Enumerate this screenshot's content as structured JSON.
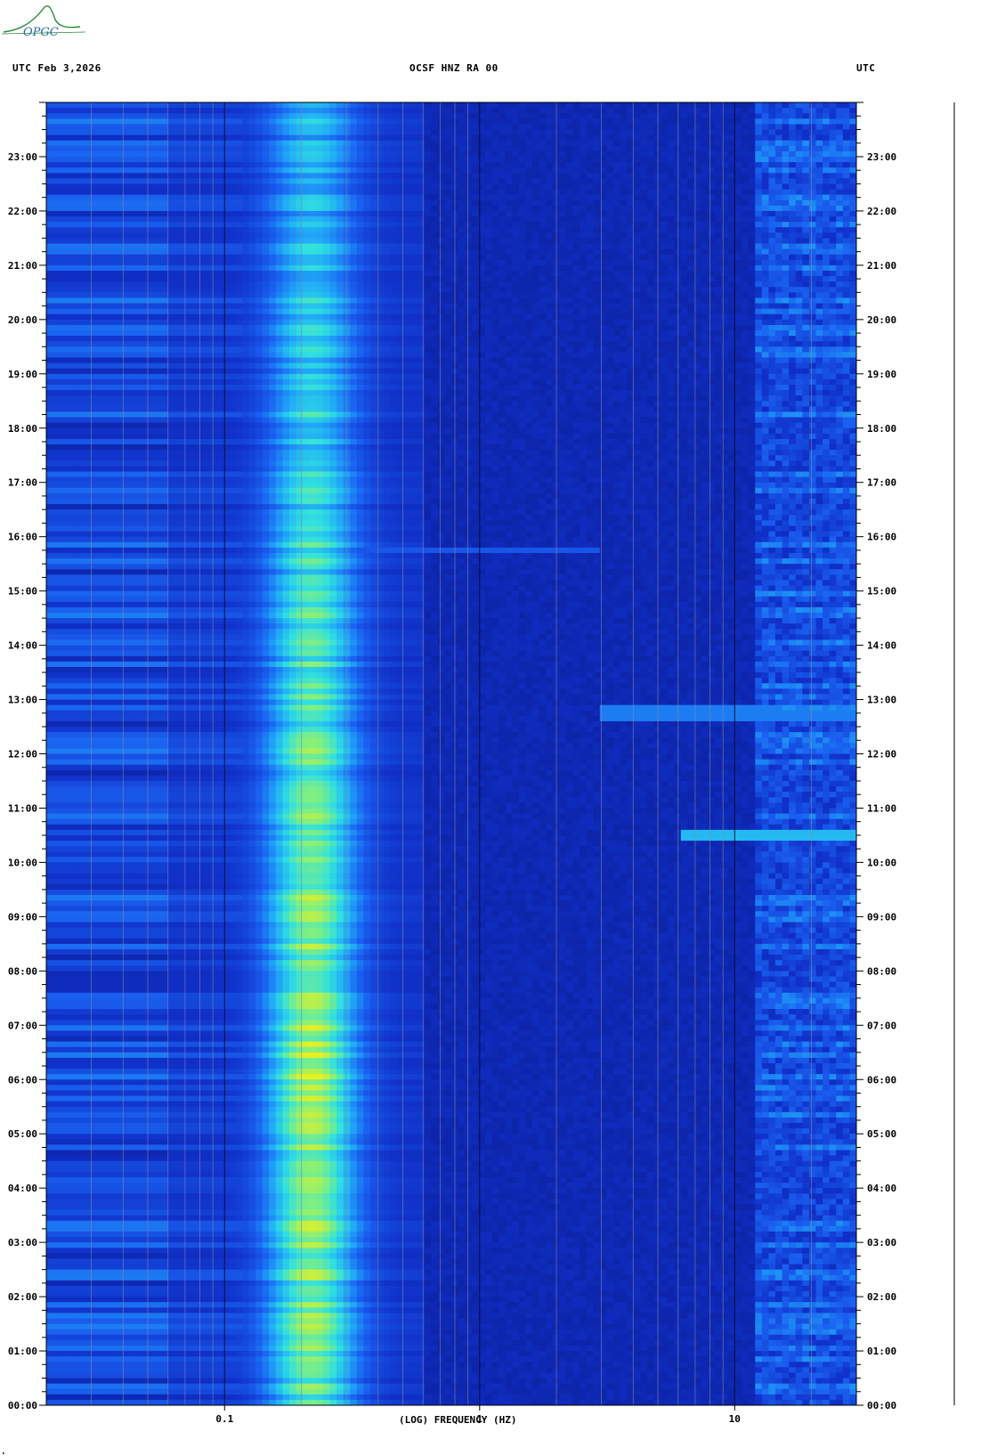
{
  "header": {
    "left": "UTC  Feb 3,2026",
    "center": "OCSF HNZ RA 00",
    "right": "UTC"
  },
  "logo": {
    "text": "OPGC",
    "color": "#2a8a3a"
  },
  "chart_data": {
    "type": "heatmap",
    "title": "OCSF HNZ RA 00",
    "xlabel": "(LOG) FREQUENCY (HZ)",
    "ylabel": "UTC",
    "x_scale": "log",
    "xlim": [
      0.02,
      30
    ],
    "x_tick_labels": [
      {
        "value": 0.1,
        "label": "0.1"
      },
      {
        "value": 1,
        "label": "1"
      },
      {
        "value": 10,
        "label": "10"
      }
    ],
    "ylim_hours": [
      0,
      24
    ],
    "y_tick_labels": [
      "00:00",
      "01:00",
      "02:00",
      "03:00",
      "04:00",
      "05:00",
      "06:00",
      "07:00",
      "08:00",
      "09:00",
      "10:00",
      "11:00",
      "12:00",
      "13:00",
      "14:00",
      "15:00",
      "16:00",
      "17:00",
      "18:00",
      "19:00",
      "20:00",
      "21:00",
      "22:00",
      "23:00"
    ],
    "colormap": [
      "#0a1a8c",
      "#1030c8",
      "#1a60f0",
      "#20a8f8",
      "#30e0e0",
      "#80f080",
      "#e8f020"
    ],
    "background_color": "#0c1ca0",
    "features": [
      {
        "name": "microseism",
        "center_hz": 0.22,
        "band_hz": [
          0.12,
          0.45
        ],
        "peak_hours": [
          1,
          12
        ]
      },
      {
        "name": "low-frequency band",
        "band_hz": [
          0.02,
          0.06
        ]
      },
      {
        "name": "high-frequency noise",
        "band_hz": [
          12,
          30
        ]
      },
      {
        "name": "transient 10:30",
        "hour": 10.5,
        "band_hz": [
          6,
          30
        ]
      },
      {
        "name": "transient 12:45",
        "hour": 12.75,
        "band_hz": [
          3,
          30
        ]
      },
      {
        "name": "transient 15:45",
        "hour": 15.75,
        "band_hz": [
          0.3,
          3
        ]
      }
    ]
  }
}
